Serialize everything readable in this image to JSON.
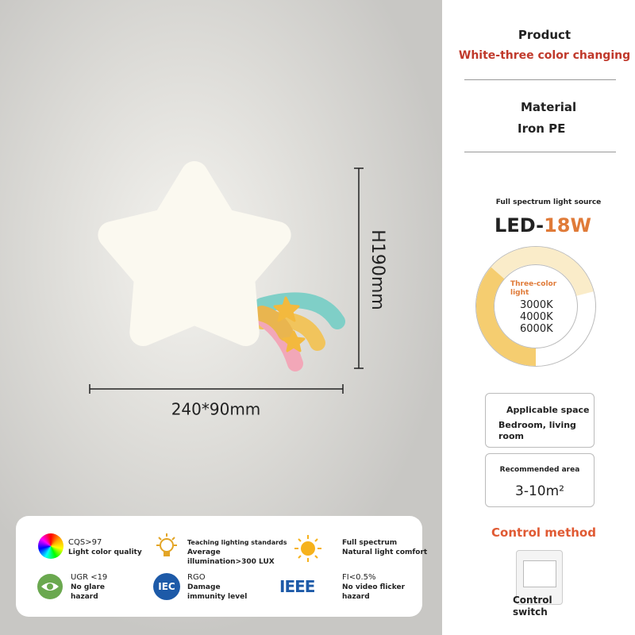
{
  "product_image": {
    "height_label": "H190mm",
    "width_label": "240*90mm"
  },
  "features": [
    {
      "title": "CQS>97",
      "text": "Light color quality"
    },
    {
      "title": "Teaching lighting standards",
      "text": "Average illumination>300 LUX"
    },
    {
      "title": "Full spectrum",
      "text": "Natural light comfort"
    },
    {
      "title": "UGR <19",
      "text": "No glare hazard"
    },
    {
      "title": "RGO",
      "text": "Damage immunity level",
      "badge": "IEC"
    },
    {
      "title": "FI<0.5%",
      "text": "No video flicker hazard",
      "badge": "IEEE"
    }
  ],
  "specs": {
    "product": {
      "label": "Product",
      "value": "White-three color changing"
    },
    "material": {
      "label": "Material",
      "value": "Iron PE"
    },
    "light_source": {
      "caption": "Full spectrum light source",
      "led": "LED-",
      "power": "18W",
      "ring_label": "Three-color light",
      "temperatures": [
        "3000K",
        "4000K",
        "6000K"
      ]
    },
    "applicable_space": {
      "label": "Applicable space",
      "value": "Bedroom, living room"
    },
    "recommended_area": {
      "label": "Recommended area",
      "value": "3-10m²"
    },
    "control": {
      "label": "Control method",
      "device": "Control switch"
    }
  }
}
